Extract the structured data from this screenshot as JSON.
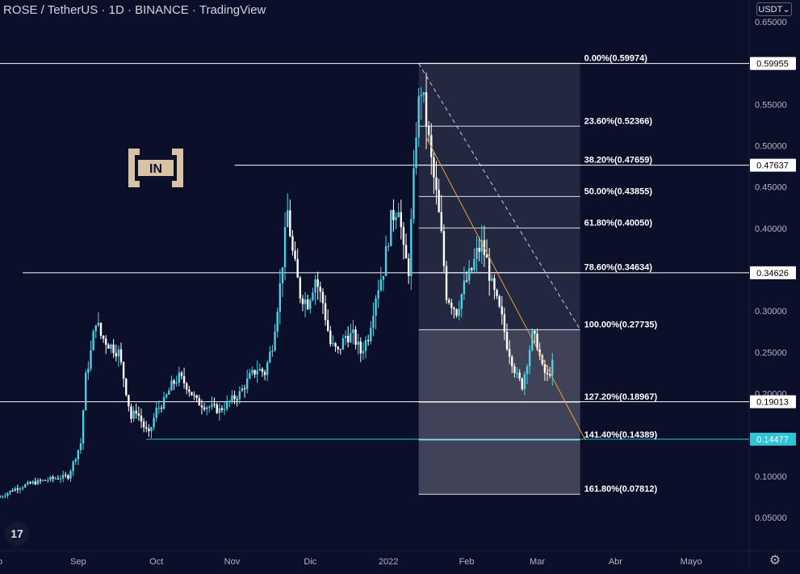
{
  "header": {
    "title": "ROSE / TetherUS · 1D · BINANCE · TradingView",
    "currency": "USDT"
  },
  "watermark": {
    "text": "IN"
  },
  "chart_data": {
    "type": "candlestick",
    "title": "ROSE / TetherUS · 1D · BINANCE · TradingView",
    "ylim": [
      0.0,
      0.67
    ],
    "price_ticks": [
      "0.65000",
      "0.55000",
      "0.50000",
      "0.45000",
      "0.40000",
      "0.30000",
      "0.25000",
      "0.20000",
      "0.10000",
      "0.05000"
    ],
    "price_tick_values": [
      0.65,
      0.55,
      0.5,
      0.45,
      0.4,
      0.3,
      0.25,
      0.2,
      0.1,
      0.05
    ],
    "time_labels": [
      "o",
      "Sep",
      "Oct",
      "Nov",
      "Dic",
      "2022",
      "Feb",
      "Mar",
      "Abr",
      "Mayo"
    ],
    "time_label_days": [
      -31,
      0,
      31,
      61,
      92,
      123,
      154,
      182,
      213,
      243
    ],
    "x_range_days": [
      -31,
      266
    ],
    "fib_levels": [
      {
        "pct": "0.00%",
        "value": 0.59974,
        "label": "0.00%(0.59974)"
      },
      {
        "pct": "23.60%",
        "value": 0.52366,
        "label": "23.60%(0.52366)"
      },
      {
        "pct": "38.20%",
        "value": 0.47659,
        "label": "38.20%(0.47659)"
      },
      {
        "pct": "50.00%",
        "value": 0.43855,
        "label": "50.00%(0.43855)"
      },
      {
        "pct": "61.80%",
        "value": 0.4005,
        "label": "61.80%(0.40050)"
      },
      {
        "pct": "78.60%",
        "value": 0.34634,
        "label": "78.60%(0.34634)"
      },
      {
        "pct": "100.00%",
        "value": 0.27735,
        "label": "100.00%(0.27735)"
      },
      {
        "pct": "127.20%",
        "value": 0.18967,
        "label": "127.20%(0.18967)"
      },
      {
        "pct": "141.40%",
        "value": 0.14389,
        "label": "141.40%(0.14389)"
      },
      {
        "pct": "161.80%",
        "value": 0.07812,
        "label": "161.80%(0.07812)"
      }
    ],
    "fib_range_days": [
      135,
      199
    ],
    "horizontal_lines": [
      {
        "value": 0.59955,
        "label": "0.59955",
        "start_day": -31,
        "color": "#ffffff",
        "badge_bg": "#ffffff",
        "badge_fg": "#000000"
      },
      {
        "value": 0.47637,
        "label": "0.47637",
        "start_day": 62,
        "color": "#ffffff",
        "badge_bg": "#ffffff",
        "badge_fg": "#000000"
      },
      {
        "value": 0.34626,
        "label": "0.34626",
        "start_day": -22,
        "color": "#ffffff",
        "badge_bg": "#ffffff",
        "badge_fg": "#000000"
      },
      {
        "value": 0.19013,
        "label": "0.19013",
        "start_day": -31,
        "color": "#ffffff",
        "badge_bg": "#ffffff",
        "badge_fg": "#000000"
      },
      {
        "value": 0.14477,
        "label": "0.14477",
        "start_day": 27,
        "color": "#2ec4d6",
        "badge_bg": "#2ec4d6",
        "badge_fg": "#ffffff"
      }
    ],
    "trendlines": [
      {
        "name": "diagonal",
        "style": "dashed",
        "color": "#c8cad0",
        "from": {
          "day": 135,
          "value": 0.5995
        },
        "to": {
          "day": 199,
          "value": 0.2774
        }
      },
      {
        "name": "resistance",
        "style": "solid",
        "color": "#e6a23c",
        "from": {
          "day": 138,
          "value": 0.51
        },
        "to": {
          "day": 201,
          "value": 0.144
        }
      }
    ],
    "price_path": [
      [
        -31,
        0.075
      ],
      [
        -25,
        0.085
      ],
      [
        -18,
        0.092
      ],
      [
        -10,
        0.097
      ],
      [
        -4,
        0.1
      ],
      [
        1,
        0.14
      ],
      [
        3,
        0.22
      ],
      [
        5,
        0.25
      ],
      [
        7,
        0.29
      ],
      [
        9,
        0.27
      ],
      [
        12,
        0.26
      ],
      [
        16,
        0.25
      ],
      [
        18,
        0.22
      ],
      [
        21,
        0.17
      ],
      [
        23,
        0.18
      ],
      [
        26,
        0.16
      ],
      [
        28,
        0.15
      ],
      [
        31,
        0.18
      ],
      [
        34,
        0.19
      ],
      [
        37,
        0.21
      ],
      [
        40,
        0.22
      ],
      [
        43,
        0.21
      ],
      [
        47,
        0.19
      ],
      [
        51,
        0.185
      ],
      [
        56,
        0.18
      ],
      [
        60,
        0.19
      ],
      [
        64,
        0.2
      ],
      [
        68,
        0.22
      ],
      [
        71,
        0.23
      ],
      [
        74,
        0.225
      ],
      [
        77,
        0.26
      ],
      [
        80,
        0.33
      ],
      [
        83,
        0.42
      ],
      [
        85,
        0.37
      ],
      [
        88,
        0.32
      ],
      [
        91,
        0.31
      ],
      [
        94,
        0.34
      ],
      [
        97,
        0.31
      ],
      [
        100,
        0.26
      ],
      [
        103,
        0.25
      ],
      [
        106,
        0.27
      ],
      [
        109,
        0.27
      ],
      [
        112,
        0.25
      ],
      [
        115,
        0.27
      ],
      [
        118,
        0.32
      ],
      [
        121,
        0.35
      ],
      [
        124,
        0.41
      ],
      [
        127,
        0.43
      ],
      [
        129,
        0.37
      ],
      [
        131,
        0.35
      ],
      [
        133,
        0.46
      ],
      [
        134,
        0.52
      ],
      [
        135,
        0.55
      ],
      [
        136,
        0.57
      ],
      [
        138,
        0.53
      ],
      [
        140,
        0.48
      ],
      [
        142,
        0.44
      ],
      [
        144,
        0.39
      ],
      [
        146,
        0.32
      ],
      [
        148,
        0.31
      ],
      [
        150,
        0.3
      ],
      [
        153,
        0.33
      ],
      [
        156,
        0.35
      ],
      [
        158,
        0.37
      ],
      [
        160,
        0.38
      ],
      [
        162,
        0.36
      ],
      [
        164,
        0.33
      ],
      [
        166,
        0.31
      ],
      [
        168,
        0.29
      ],
      [
        170,
        0.26
      ],
      [
        172,
        0.24
      ],
      [
        174,
        0.22
      ],
      [
        176,
        0.21
      ],
      [
        178,
        0.24
      ],
      [
        180,
        0.27
      ],
      [
        182,
        0.26
      ],
      [
        184,
        0.23
      ],
      [
        186,
        0.22
      ],
      [
        188,
        0.235
      ]
    ]
  }
}
